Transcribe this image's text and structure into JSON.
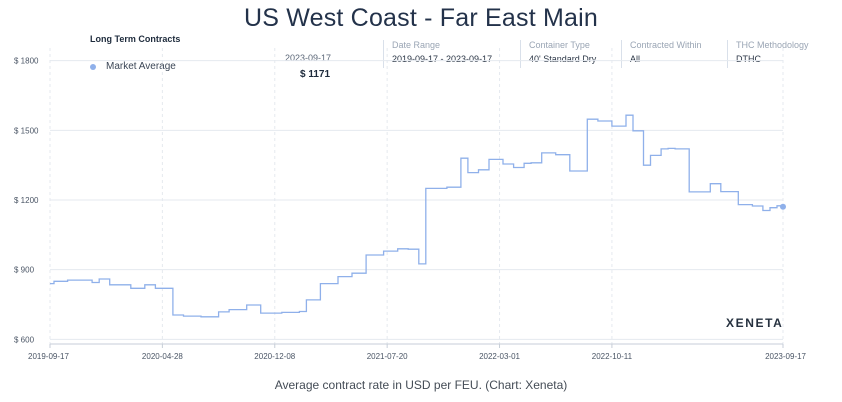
{
  "header": {
    "title": "US West Coast  - Far East Main",
    "legend_title": "Long Term Contracts",
    "legend_item": "Market Average",
    "tooltip_date": "2023-09-17",
    "tooltip_value": "$ 1171",
    "watermark": "XENETA",
    "caption": "Average contract rate in USD per FEU. (Chart: Xeneta)"
  },
  "filters": [
    {
      "label": "Date Range",
      "value": "2019-09-17 - 2023-09-17"
    },
    {
      "label": "Container Type",
      "value": "40' Standard Dry"
    },
    {
      "label": "Contracted Within",
      "value": "All"
    },
    {
      "label": "THC Methodology",
      "value": "DTHC"
    }
  ],
  "colors": {
    "line": "#8fb0ea",
    "grid": "#e5e9ef",
    "title": "#23324a"
  },
  "chart_data": {
    "type": "line",
    "step": true,
    "title": "US West Coast  - Far East Main",
    "ylabel": "",
    "xlabel": "",
    "ylim": [
      580,
      1820
    ],
    "xlim": [
      "2019-09-17",
      "2023-09-17"
    ],
    "yticks": [
      600,
      900,
      1200,
      1500,
      1800
    ],
    "ytick_labels": [
      "$ 600",
      "$ 900",
      "$ 1200",
      "$ 1500",
      "$ 1800"
    ],
    "xticks": [
      "2019-09-17",
      "2020-04-28",
      "2020-12-08",
      "2021-07-20",
      "2022-03-01",
      "2022-10-11",
      "2023-09-17"
    ],
    "grid": true,
    "legend": "top-left",
    "series": [
      {
        "name": "Market Average",
        "x": [
          "2019-09-17",
          "2019-09-25",
          "2019-10-22",
          "2019-12-10",
          "2019-12-24",
          "2020-01-14",
          "2020-02-25",
          "2020-03-24",
          "2020-04-14",
          "2020-05-19",
          "2020-06-09",
          "2020-06-16",
          "2020-07-14",
          "2020-08-18",
          "2020-09-08",
          "2020-10-13",
          "2020-10-20",
          "2020-11-10",
          "2020-12-08",
          "2020-12-22",
          "2021-01-26",
          "2021-02-09",
          "2021-03-09",
          "2021-04-13",
          "2021-05-11",
          "2021-06-08",
          "2021-06-29",
          "2021-07-13",
          "2021-08-10",
          "2021-08-31",
          "2021-09-21",
          "2021-10-05",
          "2021-10-19",
          "2021-11-16",
          "2021-12-14",
          "2021-12-28",
          "2022-01-18",
          "2022-02-08",
          "2022-03-08",
          "2022-03-29",
          "2022-04-19",
          "2022-05-03",
          "2022-05-24",
          "2022-06-21",
          "2022-07-19",
          "2022-08-23",
          "2022-09-13",
          "2022-10-11",
          "2022-11-08",
          "2022-11-22",
          "2022-12-13",
          "2022-12-27",
          "2023-01-17",
          "2023-01-31",
          "2023-02-14",
          "2023-03-14",
          "2023-04-25",
          "2023-05-16",
          "2023-06-20",
          "2023-07-18",
          "2023-08-08",
          "2023-08-22",
          "2023-09-05",
          "2023-09-17"
        ],
        "values": [
          840,
          850,
          855,
          845,
          860,
          835,
          820,
          835,
          820,
          705,
          700,
          700,
          697,
          718,
          728,
          748,
          748,
          713,
          713,
          716,
          720,
          770,
          840,
          870,
          885,
          963,
          963,
          980,
          990,
          988,
          925,
          1250,
          1250,
          1255,
          1380,
          1318,
          1330,
          1375,
          1355,
          1340,
          1358,
          1360,
          1403,
          1395,
          1325,
          1548,
          1540,
          1518,
          1565,
          1498,
          1350,
          1392,
          1420,
          1422,
          1420,
          1235,
          1270,
          1236,
          1180,
          1174,
          1155,
          1167,
          1175,
          1171
        ]
      }
    ]
  }
}
